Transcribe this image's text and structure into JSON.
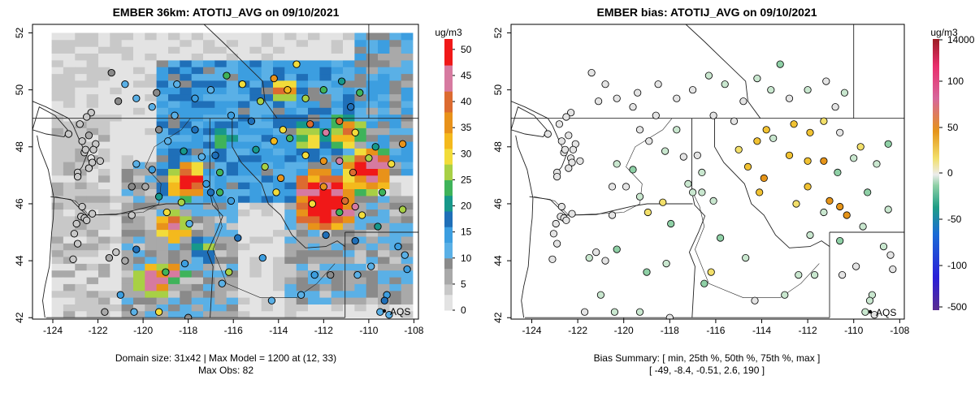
{
  "chart_data": [
    {
      "type": "heatmap",
      "title": "EMBER 36km: ATOTIJ_AVG on 09/10/2021",
      "x_ticks": [
        "-124",
        "-122",
        "-120",
        "-118",
        "-116",
        "-114",
        "-112",
        "-110",
        "-108"
      ],
      "y_ticks": [
        "42",
        "44",
        "46",
        "48",
        "50",
        "52"
      ],
      "xlim": [
        -124.9,
        -107.8
      ],
      "ylim": [
        41.95,
        52.3
      ],
      "colorbar": {
        "unit": "ug/m3",
        "ticks": [
          "0",
          "5",
          "10",
          "15",
          "20",
          "25",
          "30",
          "35",
          "40",
          "45",
          "50"
        ],
        "range": [
          0,
          52
        ]
      },
      "legend_label": "AQS",
      "footer_line1": "Domain size: 31x42 | Max Model = 1200 at (12, 33)",
      "footer_line2": "Max Obs: 82"
    },
    {
      "type": "scatter",
      "title": "EMBER bias: ATOTIJ_AVG on 09/10/2021",
      "x_ticks": [
        "-124",
        "-122",
        "-120",
        "-118",
        "-116",
        "-114",
        "-112",
        "-110",
        "-108"
      ],
      "y_ticks": [
        "42",
        "44",
        "46",
        "48",
        "50",
        "52"
      ],
      "xlim": [
        -124.9,
        -107.8
      ],
      "ylim": [
        41.95,
        52.3
      ],
      "colorbar": {
        "unit": "ug/m3",
        "ticks": [
          "-500",
          "-100",
          "-50",
          "0",
          "50",
          "100",
          "14000"
        ]
      },
      "legend_label": "AQS",
      "footer_line1": "Bias Summary: [ min, 25th %, 50th %, 75th %, max ]",
      "footer_line2": "[ -49,   -8.4,   -0.51,   2.6,   190 ]"
    }
  ]
}
